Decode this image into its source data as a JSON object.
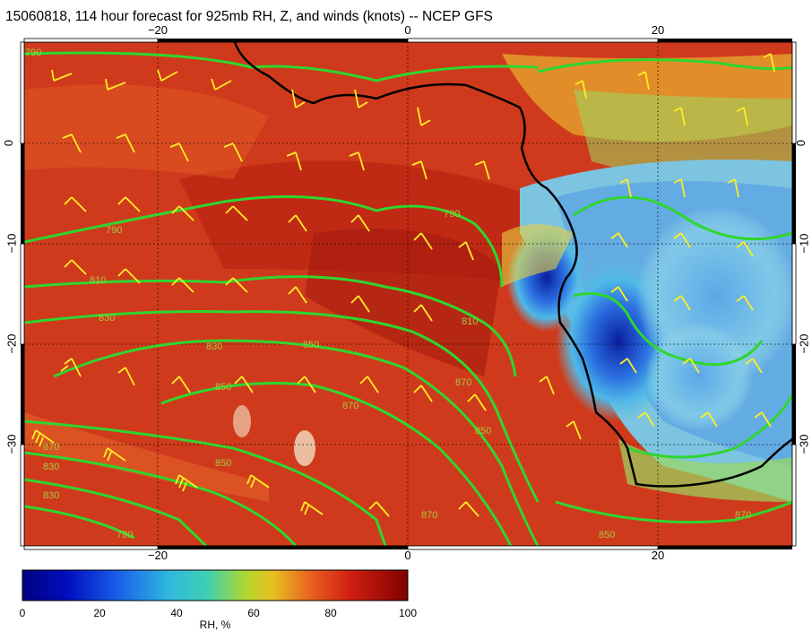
{
  "title": "15060818, 114 hour forecast for 925mb RH, Z, and winds (knots) -- NCEP GFS",
  "map": {
    "lon_range": [
      -30,
      31
    ],
    "lat_range": [
      -40,
      10
    ],
    "lon_ticks": [
      "−20",
      "0",
      "20"
    ],
    "lat_ticks_left": [
      "0",
      "−10",
      "−20",
      "−30"
    ],
    "lat_ticks_right": [
      "0",
      "−10",
      "−20",
      "−30"
    ],
    "contour_labels": [
      "790",
      "790",
      "810",
      "830",
      "830",
      "850",
      "850",
      "870",
      "870",
      "870",
      "850",
      "790",
      "810",
      "830",
      "870",
      "830",
      "850",
      "790",
      "870",
      "850"
    ],
    "colors": {
      "rh_high": "#b01a10",
      "rh_mid": "#e05a20",
      "rh_low": "#1a3cc8",
      "contour": "#2fd62f",
      "barb": "#ffee22",
      "coast": "#000000"
    }
  },
  "colorbar": {
    "ticks": [
      "0",
      "20",
      "40",
      "60",
      "80",
      "100"
    ],
    "label": "RH, %"
  }
}
